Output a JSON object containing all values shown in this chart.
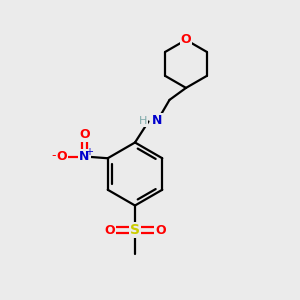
{
  "background_color": "#ebebeb",
  "bond_color": "#000000",
  "atom_colors": {
    "O": "#ff0000",
    "N": "#0000cc",
    "S": "#cccc00",
    "H": "#7faaaa",
    "C": "#000000"
  },
  "figsize": [
    3.0,
    3.0
  ],
  "dpi": 100,
  "bond_lw": 1.6,
  "fontsize": 9
}
